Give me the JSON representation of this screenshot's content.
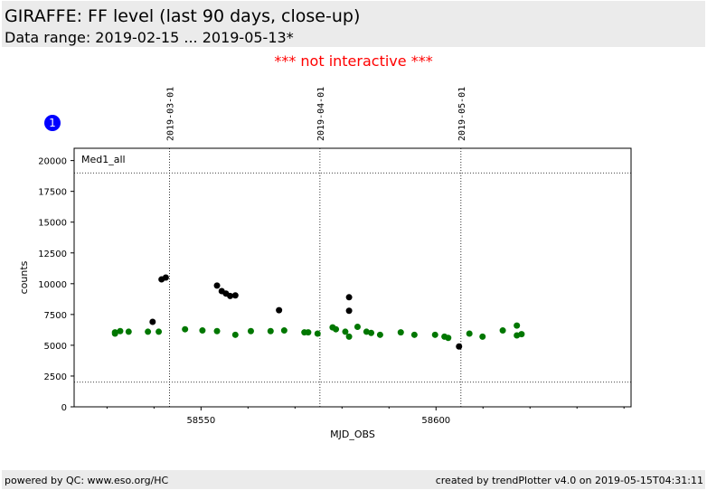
{
  "header": {
    "title": "GIRAFFE: FF level (last 90 days, close-up)",
    "subtitle": "Data range: 2019-02-15 ... 2019-05-13*"
  },
  "notice": "*** not interactive ***",
  "badge": "1",
  "footer": {
    "left": "powered by QC: www.eso.org/HC",
    "right": "created by trendPlotter v4.0 on 2019-05-15T04:31:11"
  },
  "colors": {
    "ok": "#007700",
    "flagged": "#000000",
    "notice": "#ff0000",
    "badge": "#0000ff"
  },
  "chart_data": {
    "type": "scatter",
    "xlabel": "MJD_OBS",
    "ylabel": "counts",
    "panel_label": "Med1_all",
    "xlim": [
      58523,
      58641.5
    ],
    "ylim": [
      0,
      21000
    ],
    "x_ticks": [
      58550,
      58600
    ],
    "y_ticks": [
      0,
      2500,
      5000,
      7500,
      10000,
      12500,
      15000,
      17500,
      20000
    ],
    "hlines": [
      19000,
      2000
    ],
    "date_markers": [
      {
        "x": 58543.3,
        "label": "2019-03-01"
      },
      {
        "x": 58575.3,
        "label": "2019-04-01"
      },
      {
        "x": 58605.3,
        "label": "2019-05-01"
      }
    ],
    "series": [
      {
        "points": [
          [
            58531.7,
            5950
          ],
          [
            58531.7,
            6050
          ],
          [
            58532.8,
            6150
          ],
          [
            58534.6,
            6100
          ],
          [
            58538.7,
            6100
          ],
          [
            58541.0,
            6100
          ],
          [
            58546.6,
            6300
          ],
          [
            58550.3,
            6200
          ],
          [
            58553.4,
            6150
          ],
          [
            58557.3,
            5850
          ],
          [
            58560.6,
            6150
          ],
          [
            58564.8,
            6150
          ],
          [
            58567.7,
            6200
          ],
          [
            58572.0,
            6050
          ],
          [
            58572.8,
            6050
          ],
          [
            58574.8,
            5950
          ],
          [
            58578.0,
            6450
          ],
          [
            58578.7,
            6300
          ],
          [
            58580.7,
            6100
          ],
          [
            58581.5,
            5700
          ],
          [
            58583.3,
            6500
          ],
          [
            58585.2,
            6100
          ],
          [
            58586.2,
            6000
          ],
          [
            58588.1,
            5850
          ],
          [
            58592.5,
            6050
          ],
          [
            58595.4,
            5850
          ],
          [
            58599.8,
            5850
          ],
          [
            58601.8,
            5700
          ],
          [
            58602.6,
            5600
          ],
          [
            58607.1,
            5950
          ],
          [
            58609.9,
            5700
          ],
          [
            58614.2,
            6200
          ],
          [
            58617.2,
            6600
          ],
          [
            58617.2,
            5800
          ],
          [
            58618.2,
            5900
          ]
        ]
      },
      {
        "points": [
          [
            58539.7,
            6900
          ],
          [
            58541.6,
            10350
          ],
          [
            58542.5,
            10500
          ],
          [
            58553.4,
            9850
          ],
          [
            58554.4,
            9400
          ],
          [
            58555.3,
            9200
          ],
          [
            58556.2,
            9000
          ],
          [
            58557.3,
            9050
          ],
          [
            58566.6,
            7850
          ],
          [
            58581.5,
            8900
          ],
          [
            58581.5,
            7800
          ],
          [
            58604.9,
            4900
          ]
        ]
      }
    ]
  }
}
